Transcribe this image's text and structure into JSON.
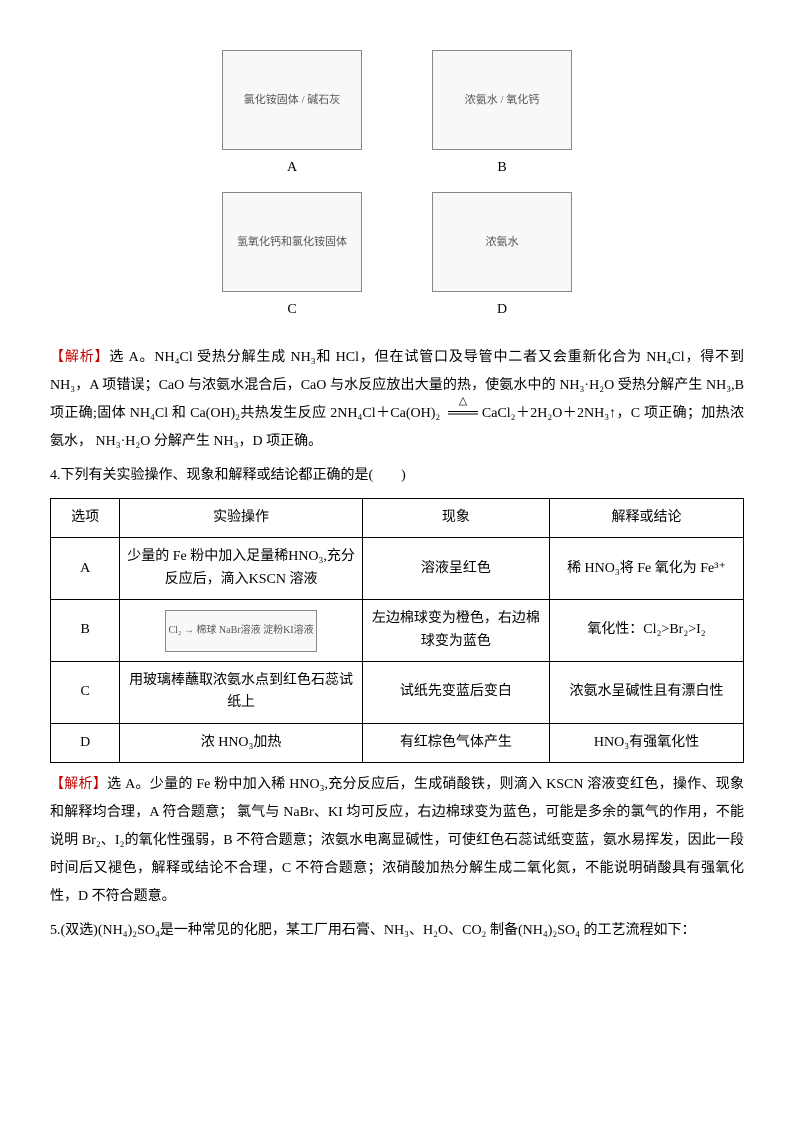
{
  "figures": {
    "grid": [
      {
        "desc": "氯化铵固体 / 碱石灰",
        "label": "A"
      },
      {
        "desc": "浓氨水 / 氧化钙",
        "label": "B"
      },
      {
        "desc": "氢氧化钙和氯化铵固体",
        "label": "C"
      },
      {
        "desc": "浓氨水",
        "label": "D"
      }
    ]
  },
  "analysis3_label": "【解析】",
  "analysis3_text_1": "选 A。NH₄Cl 受热分解生成 NH₃和 HCl，但在试管口及导管中二者又会重新化合为 NH₄Cl，得不到 NH₃，A 项错误；CaO 与浓氨水混合后，CaO 与水反应放出大量的热，使氨水中的 NH₃·H₂O 受热分解产生 NH₃,B 项正确;固体 NH₄Cl 和 Ca(OH)₂共热发生反应 2NH₄Cl＋Ca(OH",
  "analysis3_sub2": ")₂",
  "analysis3_eq_arrow": "═══",
  "analysis3_eq_tri": "△",
  "analysis3_text_2": "CaCl₂＋2H₂O＋2NH₃↑，C 项正确；加热浓氨水， NH₃·H₂O 分解产生 NH₃，D 项正确。",
  "q4_stem": "4.下列有关实验操作、现象和解释或结论都正确的是(　　)",
  "table": {
    "headers": [
      "选项",
      "实验操作",
      "现象",
      "解释或结论"
    ],
    "rows": [
      {
        "opt": "A",
        "op": "少量的 Fe 粉中加入足量稀HNO₃,充分反应后，滴入KSCN 溶液",
        "ph": "溶液呈红色",
        "con": "稀 HNO₃将 Fe 氧化为 Fe³⁺"
      },
      {
        "opt": "B",
        "op_figure": "Cl₂ → 棉球 NaBr溶液 淀粉KI溶液",
        "ph": "左边棉球变为橙色，右边棉球变为蓝色",
        "con": "氧化性：Cl₂>Br₂>I₂"
      },
      {
        "opt": "C",
        "op": "用玻璃棒蘸取浓氨水点到红色石蕊试纸上",
        "ph": "试纸先变蓝后变白",
        "con": "浓氨水呈碱性且有漂白性"
      },
      {
        "opt": "D",
        "op": "浓 HNO₃加热",
        "ph": "有红棕色气体产生",
        "con": "HNO₃有强氧化性"
      }
    ]
  },
  "analysis4_label": "【解析】",
  "analysis4_text": "选 A。少量的 Fe 粉中加入稀 HNO₃,充分反应后，生成硝酸铁，则滴入 KSCN 溶液变红色，操作、现象和解释均合理，A 符合题意； 氯气与 NaBr、KI 均可反应，右边棉球变为蓝色，可能是多余的氯气的作用，不能说明 Br₂、I₂的氧化性强弱，B 不符合题意；浓氨水电离显碱性，可使红色石蕊试纸变蓝，氨水易挥发，因此一段时间后又褪色，解释或结论不合理，C 不符合题意；浓硝酸加热分解生成二氧化氮，不能说明硝酸具有强氧化性，D 不符合题意。",
  "q5_stem": "5.(双选)(NH₄)₂SO₄是一种常见的化肥，某工厂用石膏、NH₃、H₂O、CO₂ 制备(NH₄)₂SO₄ 的工艺流程如下："
}
